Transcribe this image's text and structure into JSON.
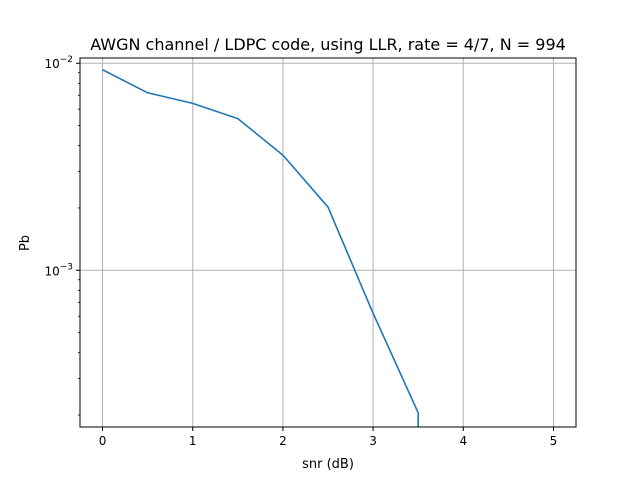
{
  "chart_data": {
    "type": "line",
    "title": "AWGN channel / LDPC code, using LLR, rate = 4/7, N = 994",
    "xlabel": "snr (dB)",
    "ylabel": "Pb",
    "x_ticks": [
      0,
      1,
      2,
      3,
      4,
      5
    ],
    "y_ticks": [
      {
        "value": 0.01,
        "label_base": "10",
        "label_exp": "−2"
      },
      {
        "value": 0.001,
        "label_base": "10",
        "label_exp": "−3"
      }
    ],
    "y_scale": "log",
    "xlim": [
      -0.25,
      5.25
    ],
    "ylim": [
      0.000175,
      0.0106
    ],
    "grid": true,
    "color": "#1f77b4",
    "series": [
      {
        "x": [
          0,
          0.5,
          1,
          1.5,
          2,
          2.5,
          3,
          3.5,
          3.5
        ],
        "y": [
          0.0093,
          0.0072,
          0.0064,
          0.0054,
          0.0036,
          0.00202,
          0.00062,
          0.000205,
          0.000175
        ]
      }
    ]
  }
}
